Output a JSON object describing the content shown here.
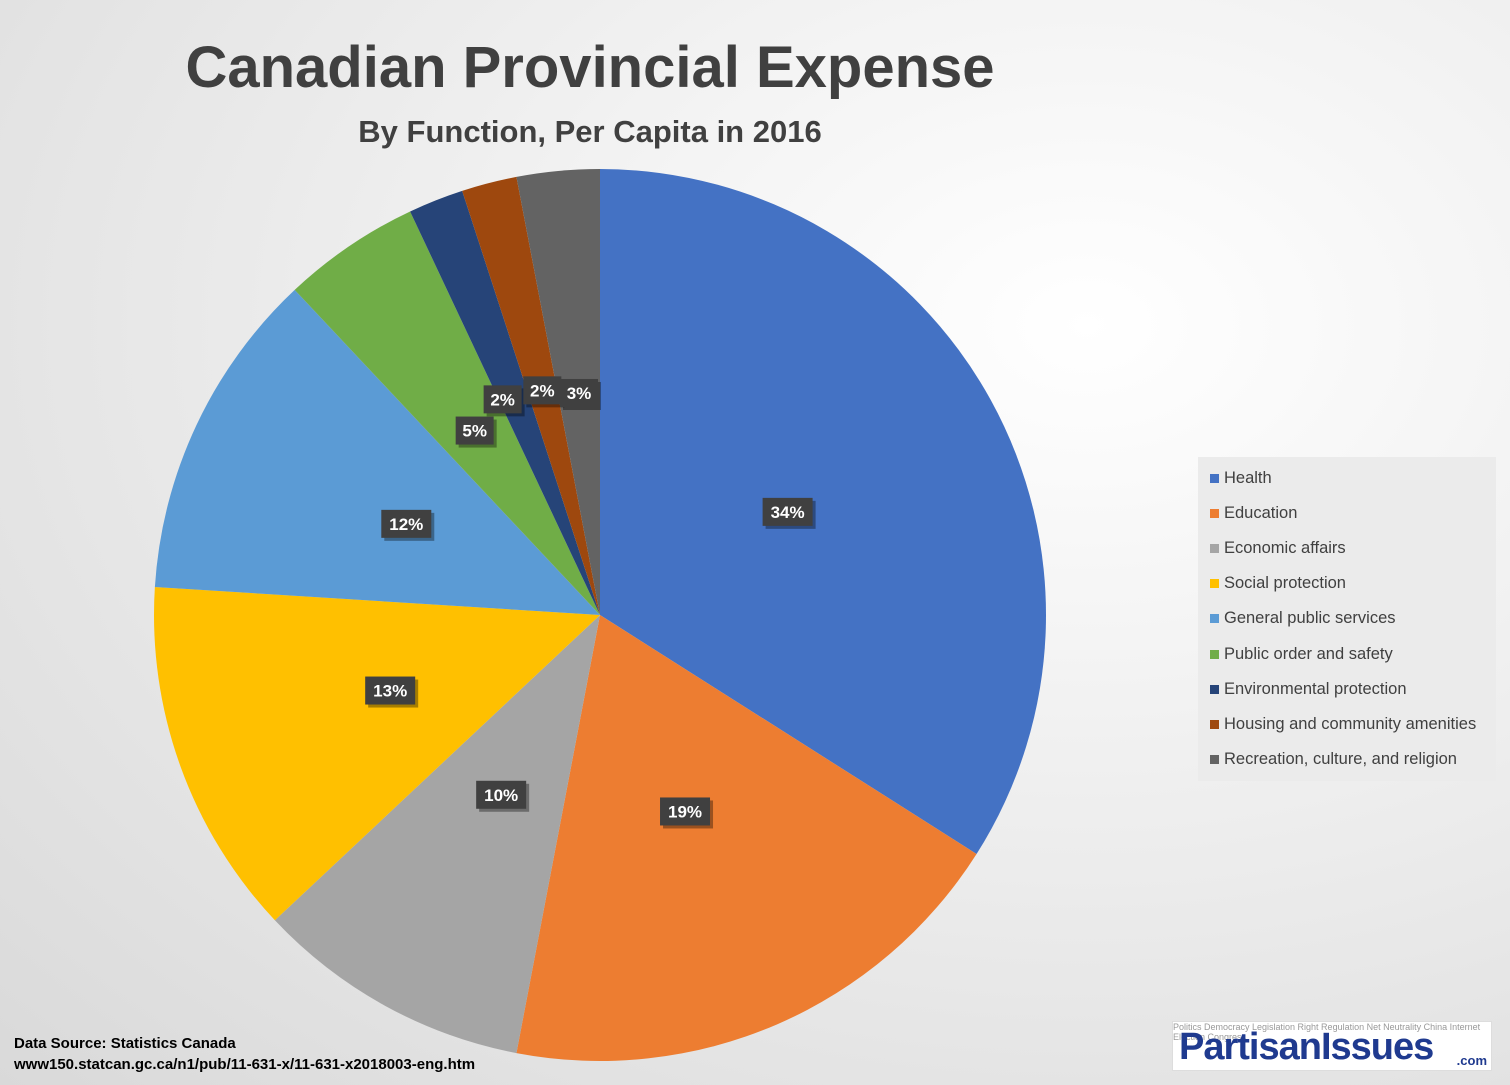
{
  "header": {
    "title": "Canadian Provincial Expense",
    "subtitle": "By Function, Per Capita in 2016"
  },
  "chart_data": {
    "type": "pie",
    "title": "Canadian Provincial Expense",
    "subtitle": "By Function, Per Capita in 2016",
    "legend_position": "right",
    "categories": [
      "Health",
      "Education",
      "Economic affairs",
      "Social protection",
      "General public services",
      "Public order and safety",
      "Environmental protection",
      "Housing and community amenities",
      "Recreation, culture, and religion"
    ],
    "values": [
      34,
      19,
      10,
      13,
      12,
      5,
      2,
      2,
      3
    ],
    "data_labels": [
      "34%",
      "19%",
      "10%",
      "13%",
      "12%",
      "5%",
      "2%",
      "2%",
      "3%"
    ],
    "colors": [
      "#4472C4",
      "#ED7D31",
      "#A5A5A5",
      "#FFC000",
      "#5B9BD5",
      "#70AD47",
      "#264478",
      "#9E480E",
      "#636363"
    ]
  },
  "source": {
    "line1": "Data Source: Statistics Canada",
    "line2": "www150.statcan.gc.ca/n1/pub/11-631-x/11-631-x2018003-eng.htm"
  },
  "logo": {
    "text": "PartisanIssues",
    "suffix": ".com",
    "background_words": "Politics Democracy Legislation Right Regulation Net Neutrality China Internet Election Congress"
  }
}
